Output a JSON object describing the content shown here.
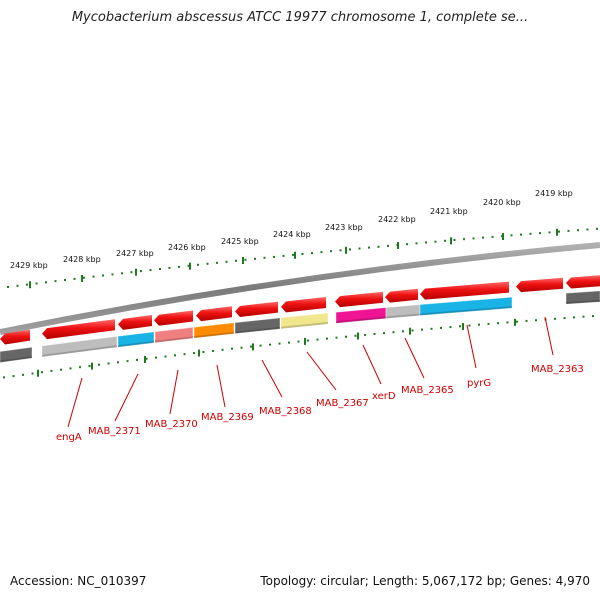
{
  "title": "Mycobacterium abscessus ATCC 19977 chromosome 1, complete se...",
  "accession": "Accession: NC_010397",
  "topology": "Topology: circular;",
  "length": "Length: 5,067,172 bp;",
  "genes_count": "Genes: 4,970",
  "colors": {
    "backbone": "#8a8a8a",
    "tick": "#1f7a1f",
    "forward_gene": "#ee1111",
    "label": "#cc0000",
    "engA": "#bdbdbd",
    "MAB_2371": "#19b3e6",
    "MAB_2370": "#f08080",
    "MAB_2369": "#ff8c00",
    "MAB_2368": "#666666",
    "MAB_2367": "#f0e68c",
    "xerD": "#ee1493",
    "MAB_2365": "#bdbdbd",
    "pyrG": "#19b3e6",
    "MAB_2363": "#666666"
  },
  "kbp_labels": [
    "2429 kbp",
    "2428 kbp",
    "2427 kbp",
    "2426 kbp",
    "2425 kbp",
    "2424 kbp",
    "2423 kbp",
    "2422 kbp",
    "2421 kbp",
    "2420 kbp",
    "2419 kbp"
  ],
  "gene_labels": [
    "engA",
    "MAB_2371",
    "MAB_2370",
    "MAB_2369",
    "MAB_2368",
    "MAB_2367",
    "xerD",
    "MAB_2365",
    "pyrG",
    "MAB_2363"
  ]
}
